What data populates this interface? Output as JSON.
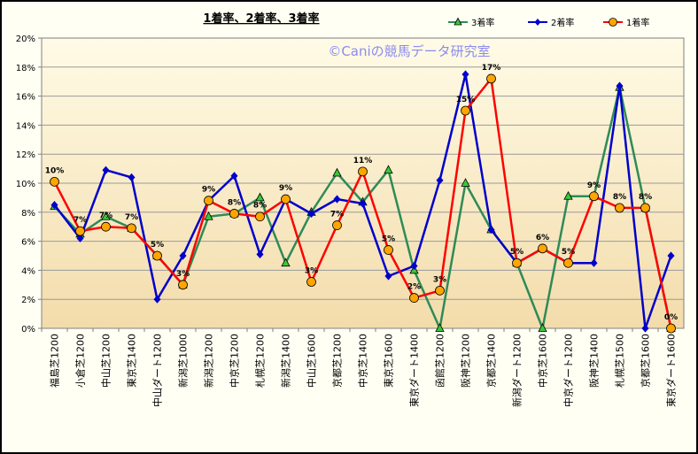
{
  "chart_data": {
    "type": "line",
    "title": "1着率、2着率、3着率",
    "watermark": "©Caniの競馬データ研究室",
    "ylim": [
      0,
      0.2
    ],
    "yticks": [
      "0%",
      "2%",
      "4%",
      "6%",
      "8%",
      "10%",
      "12%",
      "14%",
      "16%",
      "18%",
      "20%"
    ],
    "grid": "horizontal",
    "legend_position": "top-right",
    "categories": [
      "福島芝1200",
      "小倉芝1200",
      "中山芝1200",
      "東京芝1400",
      "中山ダート1200",
      "新潟芝1000",
      "新潟芝1200",
      "中京芝1200",
      "札幌芝1200",
      "新潟芝1400",
      "中山芝1600",
      "京都芝1200",
      "中京芝1400",
      "東京芝1600",
      "東京ダート1400",
      "函館芝1200",
      "阪神芝1200",
      "京都芝1400",
      "新潟ダート1200",
      "中京芝1600",
      "中京ダート1200",
      "阪神芝1400",
      "札幌芝1500",
      "京都芝1600",
      "東京ダート1600"
    ],
    "series": [
      {
        "name": "3着率",
        "color": "#2e8b57",
        "marker": "triangle",
        "marker_fill": "#39c83a",
        "values": [
          0.084,
          0.065,
          0.077,
          0.069,
          0.05,
          0.03,
          0.077,
          0.079,
          0.09,
          0.045,
          0.08,
          0.107,
          0.087,
          0.109,
          0.04,
          0.0,
          0.1,
          0.068,
          0.045,
          0.0,
          0.091,
          0.091,
          0.166,
          0.083,
          0.0
        ]
      },
      {
        "name": "2着率",
        "color": "#0000cc",
        "marker": "diamond",
        "marker_fill": "#0000cc",
        "values": [
          0.085,
          0.062,
          0.109,
          0.104,
          0.02,
          0.05,
          0.088,
          0.105,
          0.051,
          0.089,
          0.079,
          0.089,
          0.086,
          0.036,
          0.043,
          0.102,
          0.175,
          0.068,
          0.045,
          0.055,
          0.045,
          0.045,
          0.167,
          0.0,
          0.05
        ]
      },
      {
        "name": "1着率",
        "color": "#ff0000",
        "marker": "circle",
        "marker_fill": "#ffa500",
        "values": [
          0.101,
          0.067,
          0.07,
          0.069,
          0.05,
          0.03,
          0.088,
          0.079,
          0.077,
          0.089,
          0.032,
          0.071,
          0.108,
          0.054,
          0.021,
          0.026,
          0.15,
          0.172,
          0.045,
          0.055,
          0.045,
          0.091,
          0.083,
          0.083,
          0.0
        ]
      }
    ],
    "data_labels": [
      "10%",
      "7%",
      "7%",
      "7%",
      "5%",
      "3%",
      "9%",
      "8%",
      "8%",
      "9%",
      "3%",
      "7%",
      "11%",
      "5%",
      "2%",
      "3%",
      "15%",
      "17%",
      "5%",
      "6%",
      "5%",
      "9%",
      "8%",
      "8%",
      "0%"
    ]
  }
}
